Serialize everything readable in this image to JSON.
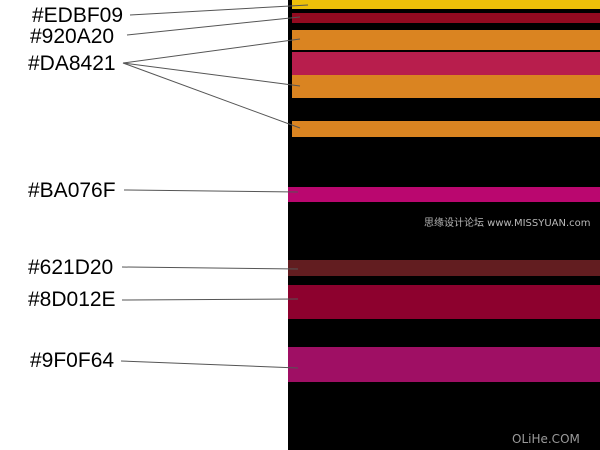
{
  "labels": [
    {
      "text": "#EDBF09"
    },
    {
      "text": "#920A20"
    },
    {
      "text": "#DA8421"
    },
    {
      "text": "#BA076F"
    },
    {
      "text": "#621D20"
    },
    {
      "text": "#8D012E"
    },
    {
      "text": "#9F0F64"
    }
  ],
  "colors": {
    "background": "#FFFFFF",
    "panel": "#000000",
    "edbf09": "#EDBF09",
    "920a20": "#920A20",
    "da8421": "#DA8421",
    "ba076f": "#BA076F",
    "621d20": "#621D20",
    "8d012e": "#8D012E",
    "9f0f64": "#9F0F64"
  },
  "watermarks": {
    "cn_site": "思缘设计论坛 www.MISSYUAN.com",
    "site": "OLiHe.COM"
  }
}
